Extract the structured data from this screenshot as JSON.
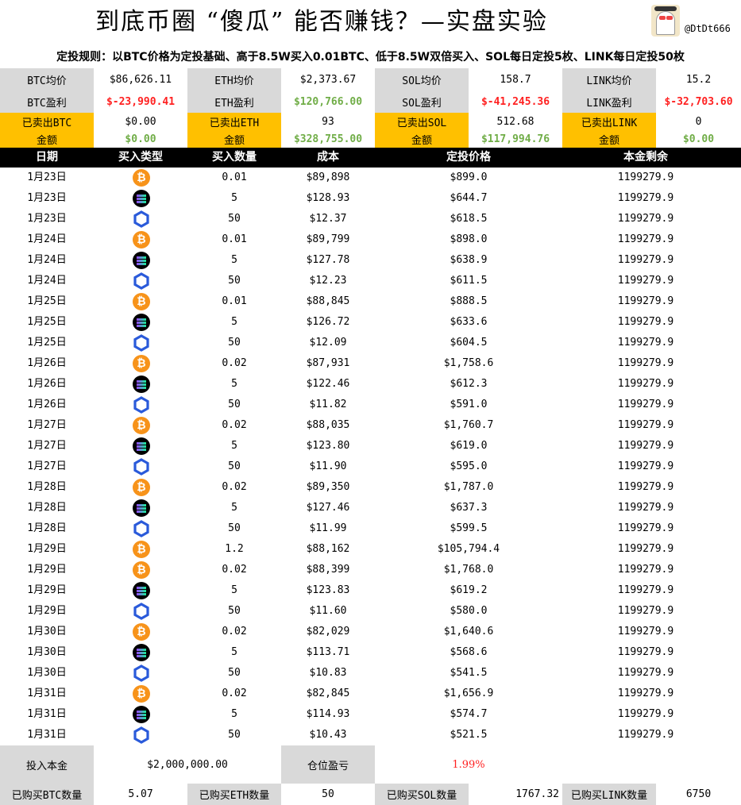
{
  "title": "到底币圈 “傻瓜” 能否赚钱？—实盘实验",
  "handle": "@DtDt666",
  "rules": "定投规则：以BTC价格为定投基础、高于8.5W买入0.01BTC、低于8.5W双倍买入、SOL每日定投5枚、LINK每日定投50枚",
  "summary": {
    "avg": [
      {
        "label": "BTC均价",
        "value": "$86,626.11"
      },
      {
        "label": "ETH均价",
        "value": "$2,373.67"
      },
      {
        "label": "SOL均价",
        "value": "158.7"
      },
      {
        "label": "LINK均价",
        "value": "15.2"
      }
    ],
    "pnl": [
      {
        "label": "BTC盈利",
        "value": "$-23,990.41"
      },
      {
        "label": "ETH盈利",
        "value": "$120,766.00"
      },
      {
        "label": "SOL盈利",
        "value": "$-41,245.36"
      },
      {
        "label": "LINK盈利",
        "value": "$-32,703.60"
      }
    ],
    "sold": [
      {
        "label": "已卖出BTC",
        "value": "$0.00"
      },
      {
        "label": "已卖出ETH",
        "value": "93"
      },
      {
        "label": "已卖出SOL",
        "value": "512.68"
      },
      {
        "label": "已卖出LINK",
        "value": "0"
      }
    ],
    "amount": [
      {
        "label": "金额",
        "value": "$0.00"
      },
      {
        "label": "金额",
        "value": "$328,755.00"
      },
      {
        "label": "金额",
        "value": "$117,994.76"
      },
      {
        "label": "金额",
        "value": "$0.00"
      }
    ]
  },
  "colors": {
    "gray": "#d9d9d9",
    "gold": "#ffc000",
    "red": "#ff2020",
    "green": "#70ad47"
  },
  "table": {
    "headers": [
      "日期",
      "买入类型",
      "买入数量",
      "成本",
      "定投价格",
      "本金剩余"
    ],
    "rows": [
      [
        "1月23日",
        "btc",
        "0.01",
        "$89,898",
        "$899.0",
        "1199279.9"
      ],
      [
        "1月23日",
        "sol",
        "5",
        "$128.93",
        "$644.7",
        "1199279.9"
      ],
      [
        "1月23日",
        "link",
        "50",
        "$12.37",
        "$618.5",
        "1199279.9"
      ],
      [
        "1月24日",
        "btc",
        "0.01",
        "$89,799",
        "$898.0",
        "1199279.9"
      ],
      [
        "1月24日",
        "sol",
        "5",
        "$127.78",
        "$638.9",
        "1199279.9"
      ],
      [
        "1月24日",
        "link",
        "50",
        "$12.23",
        "$611.5",
        "1199279.9"
      ],
      [
        "1月25日",
        "btc",
        "0.01",
        "$88,845",
        "$888.5",
        "1199279.9"
      ],
      [
        "1月25日",
        "sol",
        "5",
        "$126.72",
        "$633.6",
        "1199279.9"
      ],
      [
        "1月25日",
        "link",
        "50",
        "$12.09",
        "$604.5",
        "1199279.9"
      ],
      [
        "1月26日",
        "btc",
        "0.02",
        "$87,931",
        "$1,758.6",
        "1199279.9"
      ],
      [
        "1月26日",
        "sol",
        "5",
        "$122.46",
        "$612.3",
        "1199279.9"
      ],
      [
        "1月26日",
        "link",
        "50",
        "$11.82",
        "$591.0",
        "1199279.9"
      ],
      [
        "1月27日",
        "btc",
        "0.02",
        "$88,035",
        "$1,760.7",
        "1199279.9"
      ],
      [
        "1月27日",
        "sol",
        "5",
        "$123.80",
        "$619.0",
        "1199279.9"
      ],
      [
        "1月27日",
        "link",
        "50",
        "$11.90",
        "$595.0",
        "1199279.9"
      ],
      [
        "1月28日",
        "btc",
        "0.02",
        "$89,350",
        "$1,787.0",
        "1199279.9"
      ],
      [
        "1月28日",
        "sol",
        "5",
        "$127.46",
        "$637.3",
        "1199279.9"
      ],
      [
        "1月28日",
        "link",
        "50",
        "$11.99",
        "$599.5",
        "1199279.9"
      ],
      [
        "1月29日",
        "btc",
        "1.2",
        "$88,162",
        "$105,794.4",
        "1199279.9"
      ],
      [
        "1月29日",
        "btc",
        "0.02",
        "$88,399",
        "$1,768.0",
        "1199279.9"
      ],
      [
        "1月29日",
        "sol",
        "5",
        "$123.83",
        "$619.2",
        "1199279.9"
      ],
      [
        "1月29日",
        "link",
        "50",
        "$11.60",
        "$580.0",
        "1199279.9"
      ],
      [
        "1月30日",
        "btc",
        "0.02",
        "$82,029",
        "$1,640.6",
        "1199279.9"
      ],
      [
        "1月30日",
        "sol",
        "5",
        "$113.71",
        "$568.6",
        "1199279.9"
      ],
      [
        "1月30日",
        "link",
        "50",
        "$10.83",
        "$541.5",
        "1199279.9"
      ],
      [
        "1月31日",
        "btc",
        "0.02",
        "$82,845",
        "$1,656.9",
        "1199279.9"
      ],
      [
        "1月31日",
        "sol",
        "5",
        "$114.93",
        "$574.7",
        "1199279.9"
      ],
      [
        "1月31日",
        "link",
        "50",
        "$10.43",
        "$521.5",
        "1199279.9"
      ]
    ]
  },
  "bottom": {
    "principal_label": "投入本金",
    "principal": "$2,000,000.00",
    "position_label": "仓位盈亏",
    "position_pct": "1.99%",
    "bought": [
      {
        "label": "已购买BTC数量",
        "value": "5.07"
      },
      {
        "label": "已购买ETH数量",
        "value": "50"
      },
      {
        "label": "已购买SOL数量",
        "value": "1767.32"
      },
      {
        "label": "已购买LINK数量",
        "value": "6750"
      }
    ]
  }
}
